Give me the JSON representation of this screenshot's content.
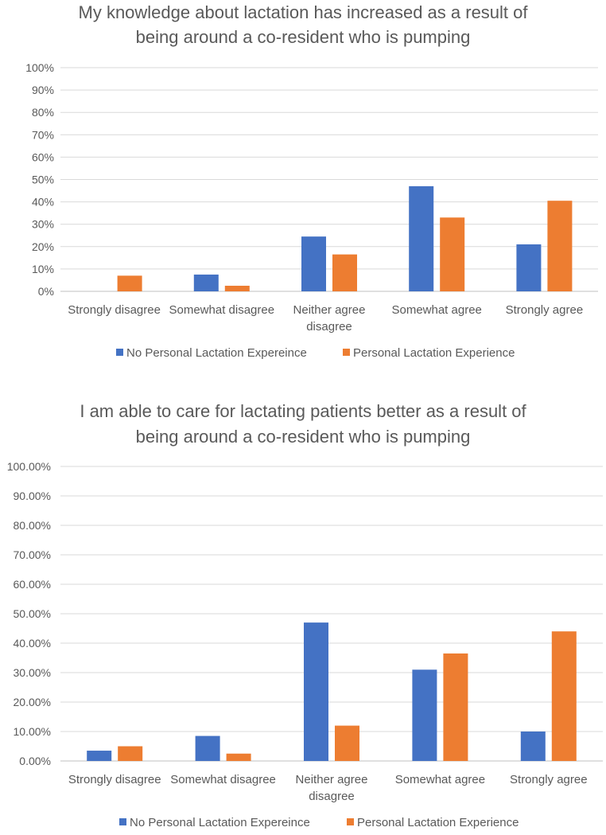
{
  "chart_data": [
    {
      "type": "bar",
      "title_lines": [
        "My knowledge about lactation has increased as a result of",
        "being around a co-resident who is pumping"
      ],
      "categories": [
        "Strongly disagree",
        "Somewhat disagree",
        "Neither agree|disagree",
        "Somewhat agree",
        "Strongly agree"
      ],
      "y_ticks": [
        "0%",
        "10%",
        "20%",
        "30%",
        "40%",
        "50%",
        "60%",
        "70%",
        "80%",
        "90%",
        "100%"
      ],
      "ylim": [
        0,
        100
      ],
      "series": [
        {
          "name": "No Personal Lactation Expereince",
          "color": "#4472c4",
          "values": [
            0,
            7.5,
            24.5,
            47,
            21
          ]
        },
        {
          "name": "Personal Lactation Experience",
          "color": "#ed7d31",
          "values": [
            7,
            2.5,
            16.5,
            33,
            40.5
          ]
        }
      ],
      "legend_position": "bottom"
    },
    {
      "type": "bar",
      "title_lines": [
        "I am able to care for lactating patients better as a result of",
        "being around a co-resident who is pumping"
      ],
      "categories": [
        "Strongly disagree",
        "Somewhat disagree",
        "Neither agree|disagree",
        "Somewhat agree",
        "Strongly agree"
      ],
      "y_ticks": [
        "0.00%",
        "10.00%",
        "20.00%",
        "30.00%",
        "40.00%",
        "50.00%",
        "60.00%",
        "70.00%",
        "80.00%",
        "90.00%",
        "100.00%"
      ],
      "ylim": [
        0,
        100
      ],
      "series": [
        {
          "name": "No Personal Lactation Expereince",
          "color": "#4472c4",
          "values": [
            3.5,
            8.5,
            47,
            31,
            10
          ]
        },
        {
          "name": "Personal Lactation Experience",
          "color": "#ed7d31",
          "values": [
            5,
            2.5,
            12,
            36.5,
            44
          ]
        }
      ],
      "legend_position": "bottom"
    }
  ]
}
